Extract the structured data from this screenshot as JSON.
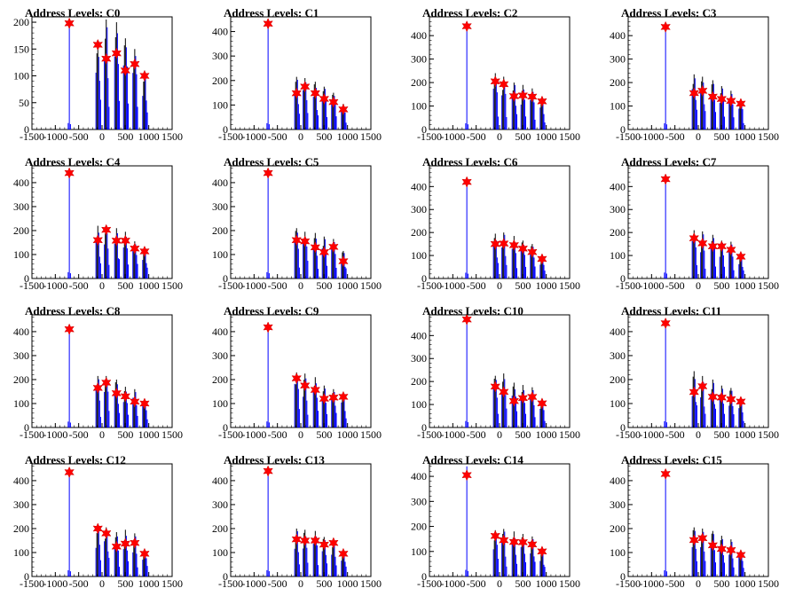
{
  "chart_data": [
    {
      "type": "bar",
      "title": "Address Levels: C0",
      "xlim": [
        -1500,
        1500
      ],
      "ylim": [
        0,
        210
      ],
      "yticks": [
        0,
        50,
        100,
        150,
        200
      ],
      "xticks": [
        -1500,
        -1000,
        -500,
        0,
        500,
        1000,
        1500
      ],
      "xtick_labels": [
        "-1500",
        "-1000",
        "-500",
        "0",
        "500",
        "1000",
        "1500"
      ],
      "peaks": {
        "x": [
          -700,
          -90,
          90,
          310,
          500,
          700,
          910
        ],
        "y": [
          198,
          158,
          132,
          142,
          110,
          122,
          100
        ]
      },
      "peak_heights": [
        200,
        150,
        205,
        200,
        170,
        150,
        110
      ]
    },
    {
      "type": "bar",
      "title": "Address Levels: C1",
      "xlim": [
        -1500,
        1500
      ],
      "ylim": [
        0,
        460
      ],
      "yticks": [
        0,
        100,
        200,
        300,
        400
      ],
      "xticks": [
        -1500,
        -1000,
        -500,
        0,
        500,
        1000,
        1500
      ],
      "xtick_labels": [
        "-1500",
        "-1000",
        "-500",
        "0",
        "500",
        "1000",
        "1500"
      ],
      "peaks": {
        "x": [
          -700,
          -90,
          90,
          310,
          500,
          700,
          910
        ],
        "y": [
          432,
          148,
          175,
          148,
          125,
          112,
          82
        ]
      },
      "peak_heights": [
        430,
        215,
        210,
        195,
        175,
        150,
        105
      ]
    },
    {
      "type": "bar",
      "title": "Address Levels: C2",
      "xlim": [
        -1500,
        1500
      ],
      "ylim": [
        0,
        480
      ],
      "yticks": [
        0,
        100,
        200,
        300,
        400
      ],
      "xticks": [
        -1500,
        -1000,
        -500,
        0,
        500,
        1000,
        1500
      ],
      "xtick_labels": [
        "-1500",
        "-1000",
        "-500",
        "0",
        "500",
        "1000",
        "1500"
      ],
      "peaks": {
        "x": [
          -700,
          -90,
          90,
          310,
          500,
          700,
          910
        ],
        "y": [
          440,
          205,
          193,
          142,
          145,
          140,
          120
        ]
      },
      "peak_heights": [
        440,
        240,
        225,
        200,
        190,
        175,
        125
      ]
    },
    {
      "type": "bar",
      "title": "Address Levels: C3",
      "xlim": [
        -1500,
        1500
      ],
      "ylim": [
        0,
        480
      ],
      "yticks": [
        0,
        100,
        200,
        300,
        400
      ],
      "xticks": [
        -1500,
        -1000,
        -500,
        0,
        500,
        1000,
        1500
      ],
      "xtick_labels": [
        "-1500",
        "-1000",
        "-500",
        "0",
        "500",
        "1000",
        "1500"
      ],
      "peaks": {
        "x": [
          -700,
          -90,
          90,
          310,
          500,
          700,
          910
        ],
        "y": [
          437,
          155,
          165,
          140,
          130,
          122,
          110
        ]
      },
      "peak_heights": [
        440,
        235,
        225,
        210,
        185,
        165,
        125
      ]
    },
    {
      "type": "bar",
      "title": "Address Levels: C4",
      "xlim": [
        -1500,
        1500
      ],
      "ylim": [
        0,
        470
      ],
      "yticks": [
        0,
        100,
        200,
        300,
        400
      ],
      "xticks": [
        -1500,
        -1000,
        -500,
        0,
        500,
        1000,
        1500
      ],
      "xtick_labels": [
        "-1500",
        "-1000",
        "-500",
        "0",
        "500",
        "1000",
        "1500"
      ],
      "peaks": {
        "x": [
          -700,
          -90,
          90,
          310,
          500,
          700,
          910
        ],
        "y": [
          440,
          160,
          203,
          158,
          158,
          125,
          113
        ]
      },
      "peak_heights": [
        440,
        220,
        215,
        210,
        195,
        155,
        115
      ]
    },
    {
      "type": "bar",
      "title": "Address Levels: C5",
      "xlim": [
        -1500,
        1500
      ],
      "ylim": [
        0,
        470
      ],
      "yticks": [
        0,
        100,
        200,
        300,
        400
      ],
      "xticks": [
        -1500,
        -1000,
        -500,
        0,
        500,
        1000,
        1500
      ],
      "xtick_labels": [
        "-1500",
        "-1000",
        "-500",
        "0",
        "500",
        "1000",
        "1500"
      ],
      "peaks": {
        "x": [
          -700,
          -90,
          90,
          310,
          500,
          700,
          910
        ],
        "y": [
          440,
          160,
          155,
          130,
          110,
          132,
          72
        ]
      },
      "peak_heights": [
        440,
        210,
        195,
        190,
        175,
        165,
        115
      ]
    },
    {
      "type": "bar",
      "title": "Address Levels: C6",
      "xlim": [
        -1500,
        1500
      ],
      "ylim": [
        0,
        490
      ],
      "yticks": [
        0,
        100,
        200,
        300,
        400
      ],
      "xticks": [
        -1500,
        -1000,
        -500,
        0,
        500,
        1000,
        1500
      ],
      "xtick_labels": [
        "-1500",
        "-1000",
        "-500",
        "0",
        "500",
        "1000",
        "1500"
      ],
      "peaks": {
        "x": [
          -700,
          -90,
          90,
          310,
          500,
          700,
          910
        ],
        "y": [
          420,
          150,
          152,
          145,
          130,
          115,
          85
        ]
      },
      "peak_heights": [
        420,
        195,
        200,
        185,
        165,
        150,
        100
      ]
    },
    {
      "type": "bar",
      "title": "Address Levels: C7",
      "xlim": [
        -1500,
        1500
      ],
      "ylim": [
        0,
        490
      ],
      "yticks": [
        0,
        100,
        200,
        300,
        400
      ],
      "xticks": [
        -1500,
        -1000,
        -500,
        0,
        500,
        1000,
        1500
      ],
      "xtick_labels": [
        "-1500",
        "-1000",
        "-500",
        "0",
        "500",
        "1000",
        "1500"
      ],
      "peaks": {
        "x": [
          -700,
          -90,
          90,
          310,
          500,
          700,
          910
        ],
        "y": [
          432,
          175,
          153,
          140,
          140,
          125,
          95
        ]
      },
      "peak_heights": [
        430,
        210,
        205,
        190,
        165,
        160,
        110
      ]
    },
    {
      "type": "bar",
      "title": "Address Levels: C8",
      "xlim": [
        -1500,
        1500
      ],
      "ylim": [
        0,
        470
      ],
      "yticks": [
        0,
        100,
        200,
        300,
        400
      ],
      "xticks": [
        -1500,
        -1000,
        -500,
        0,
        500,
        1000,
        1500
      ],
      "xtick_labels": [
        "-1500",
        "-1000",
        "-500",
        "0",
        "500",
        "1000",
        "1500"
      ],
      "peaks": {
        "x": [
          -700,
          -90,
          90,
          310,
          500,
          700,
          910
        ],
        "y": [
          410,
          165,
          187,
          143,
          130,
          108,
          100
        ]
      },
      "peak_heights": [
        410,
        215,
        215,
        200,
        170,
        160,
        115
      ]
    },
    {
      "type": "bar",
      "title": "Address Levels: C9",
      "xlim": [
        -1500,
        1500
      ],
      "ylim": [
        0,
        470
      ],
      "yticks": [
        0,
        100,
        200,
        300,
        400
      ],
      "xticks": [
        -1500,
        -1000,
        -500,
        0,
        500,
        1000,
        1500
      ],
      "xtick_labels": [
        "-1500",
        "-1000",
        "-500",
        "0",
        "500",
        "1000",
        "1500"
      ],
      "peaks": {
        "x": [
          -700,
          -90,
          90,
          310,
          500,
          700,
          910
        ],
        "y": [
          418,
          205,
          175,
          157,
          120,
          125,
          128
        ]
      },
      "peak_heights": [
        420,
        230,
        225,
        210,
        175,
        160,
        140
      ]
    },
    {
      "type": "bar",
      "title": "Address Levels: C10",
      "xlim": [
        -1500,
        1500
      ],
      "ylim": [
        0,
        490
      ],
      "yticks": [
        0,
        100,
        200,
        300,
        400
      ],
      "xticks": [
        -1500,
        -1000,
        -500,
        0,
        500,
        1000,
        1500
      ],
      "xtick_labels": [
        "-1500",
        "-1000",
        "-500",
        "0",
        "500",
        "1000",
        "1500"
      ],
      "peaks": {
        "x": [
          -700,
          -90,
          90,
          310,
          500,
          700,
          910
        ],
        "y": [
          470,
          178,
          155,
          115,
          128,
          133,
          105
        ]
      },
      "peak_heights": [
        470,
        225,
        235,
        195,
        185,
        175,
        115
      ]
    },
    {
      "type": "bar",
      "title": "Address Levels: C11",
      "xlim": [
        -1500,
        1500
      ],
      "ylim": [
        0,
        470
      ],
      "yticks": [
        0,
        100,
        200,
        300,
        400
      ],
      "xticks": [
        -1500,
        -1000,
        -500,
        0,
        500,
        1000,
        1500
      ],
      "xtick_labels": [
        "-1500",
        "-1000",
        "-500",
        "0",
        "500",
        "1000",
        "1500"
      ],
      "peaks": {
        "x": [
          -700,
          -90,
          90,
          310,
          500,
          700,
          910
        ],
        "y": [
          435,
          148,
          172,
          128,
          125,
          118,
          108
        ]
      },
      "peak_heights": [
        435,
        235,
        215,
        200,
        175,
        165,
        120
      ]
    },
    {
      "type": "bar",
      "title": "Address Levels: C12",
      "xlim": [
        -1500,
        1500
      ],
      "ylim": [
        0,
        470
      ],
      "yticks": [
        0,
        100,
        200,
        300,
        400
      ],
      "xticks": [
        -1500,
        -1000,
        -500,
        0,
        500,
        1000,
        1500
      ],
      "xtick_labels": [
        "-1500",
        "-1000",
        "-500",
        "0",
        "500",
        "1000",
        "1500"
      ],
      "peaks": {
        "x": [
          -700,
          -90,
          90,
          310,
          500,
          700,
          910
        ],
        "y": [
          435,
          200,
          180,
          125,
          137,
          140,
          95
        ]
      },
      "peak_heights": [
        435,
        210,
        205,
        185,
        195,
        180,
        110
      ]
    },
    {
      "type": "bar",
      "title": "Address Levels: C13",
      "xlim": [
        -1500,
        1500
      ],
      "ylim": [
        0,
        470
      ],
      "yticks": [
        0,
        100,
        200,
        300,
        400
      ],
      "xticks": [
        -1500,
        -1000,
        -500,
        0,
        500,
        1000,
        1500
      ],
      "xtick_labels": [
        "-1500",
        "-1000",
        "-500",
        "0",
        "500",
        "1000",
        "1500"
      ],
      "peaks": {
        "x": [
          -700,
          -90,
          90,
          310,
          500,
          700,
          910
        ],
        "y": [
          440,
          155,
          150,
          150,
          133,
          140,
          95
        ]
      },
      "peak_heights": [
        440,
        200,
        195,
        190,
        165,
        160,
        110
      ]
    },
    {
      "type": "bar",
      "title": "Address Levels: C14",
      "xlim": [
        -1500,
        1500
      ],
      "ylim": [
        0,
        450
      ],
      "yticks": [
        0,
        100,
        200,
        300,
        400
      ],
      "xticks": [
        -1500,
        -1000,
        -500,
        0,
        500,
        1000,
        1500
      ],
      "xtick_labels": [
        "-1500",
        "-1000",
        "-500",
        "0",
        "500",
        "1000",
        "1500"
      ],
      "peaks": {
        "x": [
          -700,
          -90,
          90,
          310,
          500,
          700,
          910
        ],
        "y": [
          405,
          162,
          145,
          138,
          137,
          128,
          100
        ]
      },
      "peak_heights": [
        440,
        185,
        190,
        180,
        170,
        160,
        110
      ]
    },
    {
      "type": "bar",
      "title": "Address Levels: C15",
      "xlim": [
        -1500,
        1500
      ],
      "ylim": [
        0,
        470
      ],
      "yticks": [
        0,
        100,
        200,
        300,
        400
      ],
      "xticks": [
        -1500,
        -1000,
        -500,
        0,
        500,
        1000,
        1500
      ],
      "xtick_labels": [
        "-1500",
        "-1000",
        "-500",
        "0",
        "500",
        "1000",
        "1500"
      ],
      "peaks": {
        "x": [
          -700,
          -90,
          90,
          310,
          500,
          700,
          910
        ],
        "y": [
          428,
          152,
          160,
          130,
          115,
          110,
          90
        ]
      },
      "peak_heights": [
        430,
        205,
        200,
        190,
        170,
        155,
        110
      ]
    }
  ],
  "colors": {
    "histogram": "#0000ff",
    "histogram_dark": "#000000",
    "marker": "#ff0000",
    "axis": "#000000"
  }
}
